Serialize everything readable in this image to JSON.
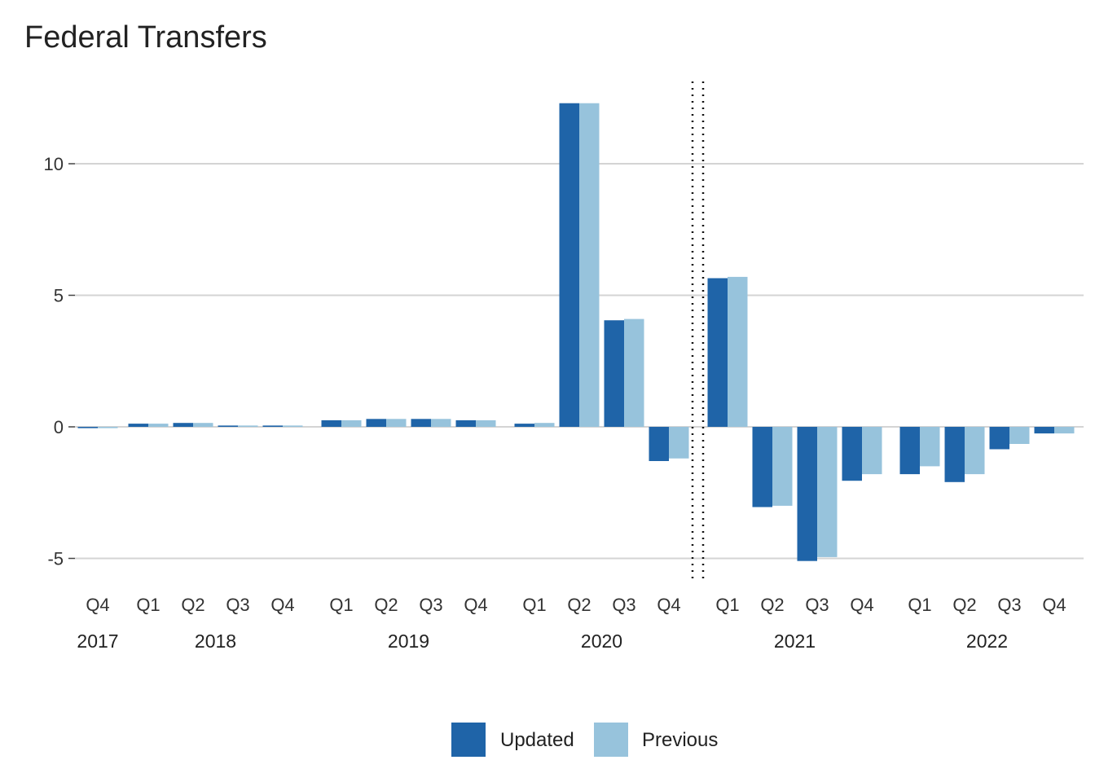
{
  "chart_data": {
    "type": "bar",
    "title": "Federal Transfers",
    "xlabel": "",
    "ylabel": "",
    "ylim": [
      -5.5,
      13
    ],
    "yticks": [
      10,
      5,
      0,
      -5
    ],
    "ytick_labels": [
      "10",
      "5",
      "0",
      "-5"
    ],
    "grid": true,
    "legend_position": "bottom-center",
    "forecast_divider_after": "2020 Q4",
    "colors": {
      "Updated": "#1f64a8",
      "Previous": "#97c3dc"
    },
    "categories": [
      {
        "quarter": "Q4",
        "year": "2017"
      },
      {
        "quarter": "Q1",
        "year": "2018"
      },
      {
        "quarter": "Q2",
        "year": "2018"
      },
      {
        "quarter": "Q3",
        "year": "2018"
      },
      {
        "quarter": "Q4",
        "year": "2018"
      },
      {
        "quarter": "Q1",
        "year": "2019"
      },
      {
        "quarter": "Q2",
        "year": "2019"
      },
      {
        "quarter": "Q3",
        "year": "2019"
      },
      {
        "quarter": "Q4",
        "year": "2019"
      },
      {
        "quarter": "Q1",
        "year": "2020"
      },
      {
        "quarter": "Q2",
        "year": "2020"
      },
      {
        "quarter": "Q3",
        "year": "2020"
      },
      {
        "quarter": "Q4",
        "year": "2020"
      },
      {
        "quarter": "Q1",
        "year": "2021"
      },
      {
        "quarter": "Q2",
        "year": "2021"
      },
      {
        "quarter": "Q3",
        "year": "2021"
      },
      {
        "quarter": "Q4",
        "year": "2021"
      },
      {
        "quarter": "Q1",
        "year": "2022"
      },
      {
        "quarter": "Q2",
        "year": "2022"
      },
      {
        "quarter": "Q3",
        "year": "2022"
      },
      {
        "quarter": "Q4",
        "year": "2022"
      }
    ],
    "years": [
      "2017",
      "2018",
      "2019",
      "2020",
      "2021",
      "2022"
    ],
    "series": [
      {
        "name": "Updated",
        "values": [
          -0.05,
          0.12,
          0.15,
          0.05,
          0.05,
          0.25,
          0.3,
          0.3,
          0.25,
          0.12,
          12.3,
          4.05,
          -1.3,
          5.65,
          -3.05,
          -5.1,
          -2.05,
          -1.8,
          -2.1,
          -0.85,
          -0.25
        ]
      },
      {
        "name": "Previous",
        "values": [
          -0.05,
          0.12,
          0.15,
          0.05,
          0.05,
          0.25,
          0.3,
          0.3,
          0.25,
          0.15,
          12.3,
          4.1,
          -1.2,
          5.7,
          -3.0,
          -4.95,
          -1.8,
          -1.5,
          -1.8,
          -0.65,
          -0.25
        ]
      }
    ]
  }
}
